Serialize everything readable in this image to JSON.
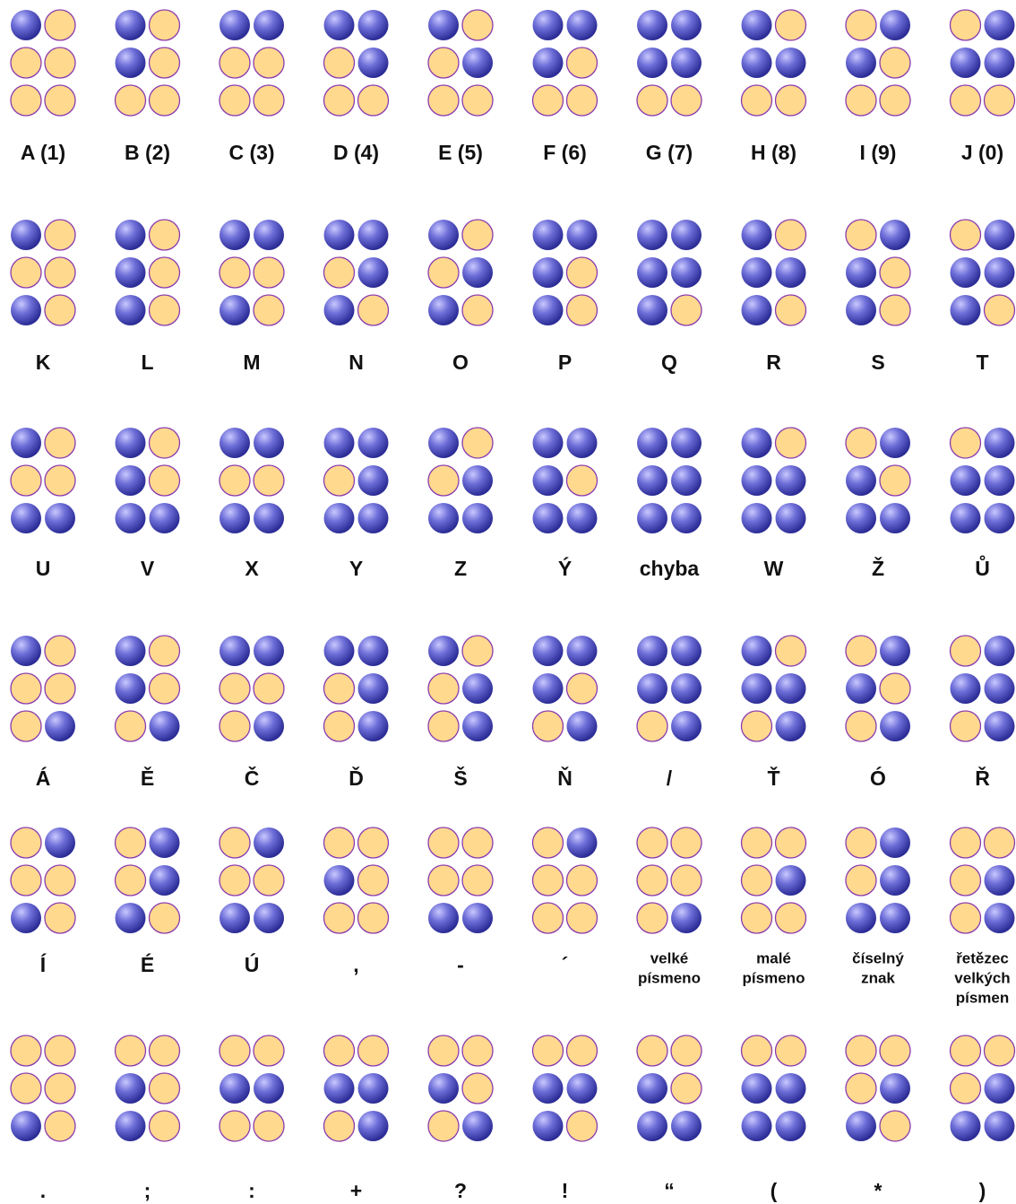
{
  "rows": [
    {
      "cells": [
        {
          "label": "A (1)",
          "dots": [
            1,
            0,
            0,
            0,
            0,
            0
          ]
        },
        {
          "label": "B (2)",
          "dots": [
            1,
            0,
            1,
            0,
            0,
            0
          ]
        },
        {
          "label": "C (3)",
          "dots": [
            1,
            1,
            0,
            0,
            0,
            0
          ]
        },
        {
          "label": "D (4)",
          "dots": [
            1,
            1,
            0,
            1,
            0,
            0
          ]
        },
        {
          "label": "E (5)",
          "dots": [
            1,
            0,
            0,
            1,
            0,
            0
          ]
        },
        {
          "label": "F (6)",
          "dots": [
            1,
            1,
            1,
            0,
            0,
            0
          ]
        },
        {
          "label": "G (7)",
          "dots": [
            1,
            1,
            1,
            1,
            0,
            0
          ]
        },
        {
          "label": "H (8)",
          "dots": [
            1,
            0,
            1,
            1,
            0,
            0
          ]
        },
        {
          "label": "I (9)",
          "dots": [
            0,
            1,
            1,
            0,
            0,
            0
          ]
        },
        {
          "label": "J (0)",
          "dots": [
            0,
            1,
            1,
            1,
            0,
            0
          ]
        }
      ]
    },
    {
      "cells": [
        {
          "label": "K",
          "dots": [
            1,
            0,
            0,
            0,
            1,
            0
          ]
        },
        {
          "label": "L",
          "dots": [
            1,
            0,
            1,
            0,
            1,
            0
          ]
        },
        {
          "label": "M",
          "dots": [
            1,
            1,
            0,
            0,
            1,
            0
          ]
        },
        {
          "label": "N",
          "dots": [
            1,
            1,
            0,
            1,
            1,
            0
          ]
        },
        {
          "label": "O",
          "dots": [
            1,
            0,
            0,
            1,
            1,
            0
          ]
        },
        {
          "label": "P",
          "dots": [
            1,
            1,
            1,
            0,
            1,
            0
          ]
        },
        {
          "label": "Q",
          "dots": [
            1,
            1,
            1,
            1,
            1,
            0
          ]
        },
        {
          "label": "R",
          "dots": [
            1,
            0,
            1,
            1,
            1,
            0
          ]
        },
        {
          "label": "S",
          "dots": [
            0,
            1,
            1,
            0,
            1,
            0
          ]
        },
        {
          "label": "T",
          "dots": [
            0,
            1,
            1,
            1,
            1,
            0
          ]
        }
      ]
    },
    {
      "cells": [
        {
          "label": "U",
          "dots": [
            1,
            0,
            0,
            0,
            1,
            1
          ]
        },
        {
          "label": "V",
          "dots": [
            1,
            0,
            1,
            0,
            1,
            1
          ]
        },
        {
          "label": "X",
          "dots": [
            1,
            1,
            0,
            0,
            1,
            1
          ]
        },
        {
          "label": "Y",
          "dots": [
            1,
            1,
            0,
            1,
            1,
            1
          ]
        },
        {
          "label": "Z",
          "dots": [
            1,
            0,
            0,
            1,
            1,
            1
          ]
        },
        {
          "label": "Ý",
          "dots": [
            1,
            1,
            1,
            0,
            1,
            1
          ]
        },
        {
          "label": "chyba",
          "dots": [
            1,
            1,
            1,
            1,
            1,
            1
          ]
        },
        {
          "label": "W",
          "dots": [
            1,
            0,
            1,
            1,
            1,
            1
          ]
        },
        {
          "label": "Ž",
          "dots": [
            0,
            1,
            1,
            0,
            1,
            1
          ]
        },
        {
          "label": "Ů",
          "dots": [
            0,
            1,
            1,
            1,
            1,
            1
          ]
        }
      ]
    },
    {
      "cells": [
        {
          "label": "Á",
          "dots": [
            1,
            0,
            0,
            0,
            0,
            1
          ]
        },
        {
          "label": "Ě",
          "dots": [
            1,
            0,
            1,
            0,
            0,
            1
          ]
        },
        {
          "label": "Č",
          "dots": [
            1,
            1,
            0,
            0,
            0,
            1
          ]
        },
        {
          "label": "Ď",
          "dots": [
            1,
            1,
            0,
            1,
            0,
            1
          ]
        },
        {
          "label": "Š",
          "dots": [
            1,
            0,
            0,
            1,
            0,
            1
          ]
        },
        {
          "label": "Ň",
          "dots": [
            1,
            1,
            1,
            0,
            0,
            1
          ]
        },
        {
          "label": "/",
          "dots": [
            1,
            1,
            1,
            1,
            0,
            1
          ]
        },
        {
          "label": "Ť",
          "dots": [
            1,
            0,
            1,
            1,
            0,
            1
          ]
        },
        {
          "label": "Ó",
          "dots": [
            0,
            1,
            1,
            0,
            0,
            1
          ]
        },
        {
          "label": "Ř",
          "dots": [
            0,
            1,
            1,
            1,
            0,
            1
          ]
        }
      ]
    },
    {
      "cells": [
        {
          "label": "Í",
          "dots": [
            0,
            1,
            0,
            0,
            1,
            0
          ]
        },
        {
          "label": "É",
          "dots": [
            0,
            1,
            0,
            1,
            1,
            0
          ]
        },
        {
          "label": "Ú",
          "dots": [
            0,
            1,
            0,
            0,
            1,
            1
          ]
        },
        {
          "label": ",",
          "dots": [
            0,
            0,
            1,
            0,
            0,
            0
          ]
        },
        {
          "label": "-",
          "dots": [
            0,
            0,
            0,
            0,
            1,
            1
          ]
        },
        {
          "label": "´",
          "dots": [
            0,
            1,
            0,
            0,
            0,
            0
          ]
        },
        {
          "label": [
            "velké",
            "písmeno"
          ],
          "dots": [
            0,
            0,
            0,
            0,
            0,
            1
          ]
        },
        {
          "label": [
            "malé",
            "písmeno"
          ],
          "dots": [
            0,
            0,
            0,
            1,
            0,
            0
          ]
        },
        {
          "label": [
            "číselný",
            "znak"
          ],
          "dots": [
            0,
            1,
            0,
            1,
            1,
            1
          ]
        },
        {
          "label": [
            "řetězec",
            "velkých",
            "písmen"
          ],
          "dots": [
            0,
            0,
            0,
            1,
            0,
            1
          ]
        }
      ]
    },
    {
      "cells": [
        {
          "label": ".",
          "dots": [
            0,
            0,
            0,
            0,
            1,
            0
          ]
        },
        {
          "label": ";",
          "dots": [
            0,
            0,
            1,
            0,
            1,
            0
          ]
        },
        {
          "label": ":",
          "dots": [
            0,
            0,
            1,
            1,
            0,
            0
          ]
        },
        {
          "label": "+",
          "dots": [
            0,
            0,
            1,
            1,
            0,
            1
          ]
        },
        {
          "label": "?",
          "dots": [
            0,
            0,
            1,
            0,
            0,
            1
          ]
        },
        {
          "label": "!",
          "dots": [
            0,
            0,
            1,
            1,
            1,
            0
          ]
        },
        {
          "label": "“",
          "dots": [
            0,
            0,
            1,
            0,
            1,
            1
          ]
        },
        {
          "label": "(",
          "dots": [
            0,
            0,
            1,
            1,
            1,
            1
          ]
        },
        {
          "label": "*",
          "dots": [
            0,
            0,
            0,
            1,
            1,
            0
          ]
        },
        {
          "label": ")",
          "dots": [
            0,
            0,
            0,
            1,
            1,
            1
          ]
        }
      ]
    }
  ]
}
